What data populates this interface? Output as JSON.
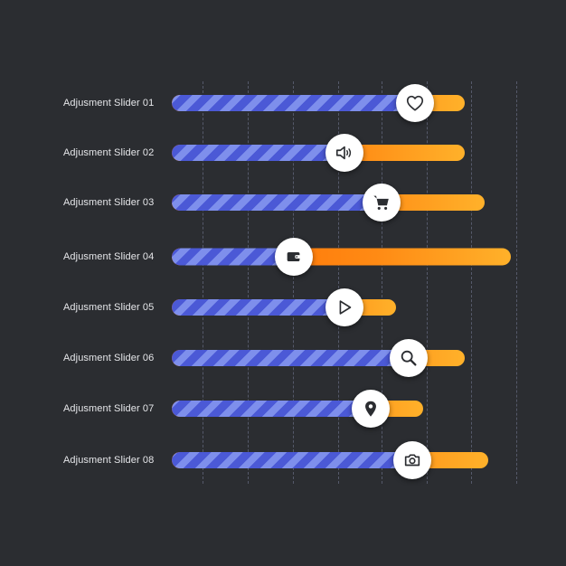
{
  "colors": {
    "background": "#2b2d31",
    "fill_stripe_dark": "#4b59d6",
    "fill_stripe_light": "#7e8fec",
    "track_orange_start": "#ff6a00",
    "track_orange_end": "#ffb12a",
    "knob": "#ffffff",
    "icon": "#2b2d31"
  },
  "sliders": [
    {
      "label": "Adjusment Slider 01",
      "icon": "heart-icon",
      "value_fraction": 0.83
    },
    {
      "label": "Adjusment Slider 02",
      "icon": "speaker-icon",
      "value_fraction": 0.59
    },
    {
      "label": "Adjusment Slider 03",
      "icon": "cart-icon",
      "value_fraction": 0.67
    },
    {
      "label": "Adjusment Slider 04",
      "icon": "wallet-icon",
      "value_fraction": 0.36
    },
    {
      "label": "Adjusment Slider 05",
      "icon": "play-icon",
      "value_fraction": 0.77
    },
    {
      "label": "Adjusment Slider 06",
      "icon": "search-icon",
      "value_fraction": 0.81
    },
    {
      "label": "Adjusment Slider 07",
      "icon": "location-icon",
      "value_fraction": 0.79
    },
    {
      "label": "Adjusment Slider 08",
      "icon": "camera-icon",
      "value_fraction": 0.76
    }
  ]
}
